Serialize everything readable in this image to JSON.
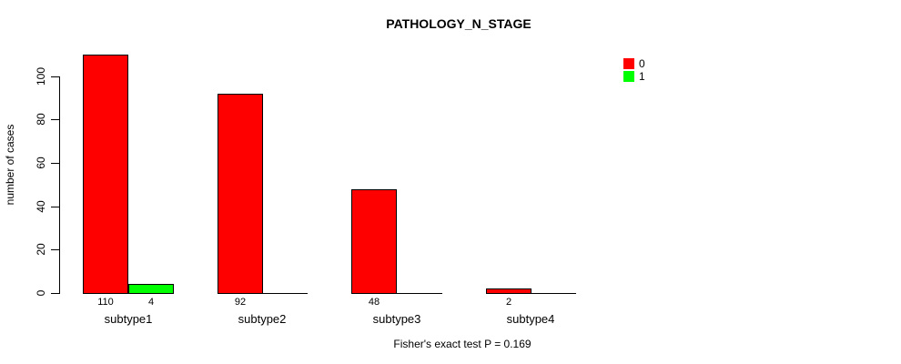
{
  "chart_data": {
    "type": "bar",
    "title": "PATHOLOGY_N_STAGE",
    "xlabel": "",
    "ylabel": "number of cases",
    "categories": [
      "subtype1",
      "subtype2",
      "subtype3",
      "subtype4"
    ],
    "series": [
      {
        "name": "0",
        "color": "#ff0000",
        "values": [
          110,
          92,
          48,
          2
        ]
      },
      {
        "name": "1",
        "color": "#00ff00",
        "values": [
          4,
          0,
          0,
          0
        ]
      }
    ],
    "bar_value_labels": {
      "show_when_positive": true,
      "shown": [
        "110",
        "4",
        "92",
        "48",
        "2"
      ]
    },
    "yticks": [
      0,
      20,
      40,
      60,
      80,
      100
    ],
    "ylim": [
      0,
      113
    ],
    "grid": false,
    "legend_position": "top-right",
    "annotation": "Fisher's exact test P = 0.169",
    "colors": {
      "series_0": "#ff0000",
      "series_1": "#00ff00",
      "axis": "#000000",
      "background": "#ffffff"
    }
  }
}
